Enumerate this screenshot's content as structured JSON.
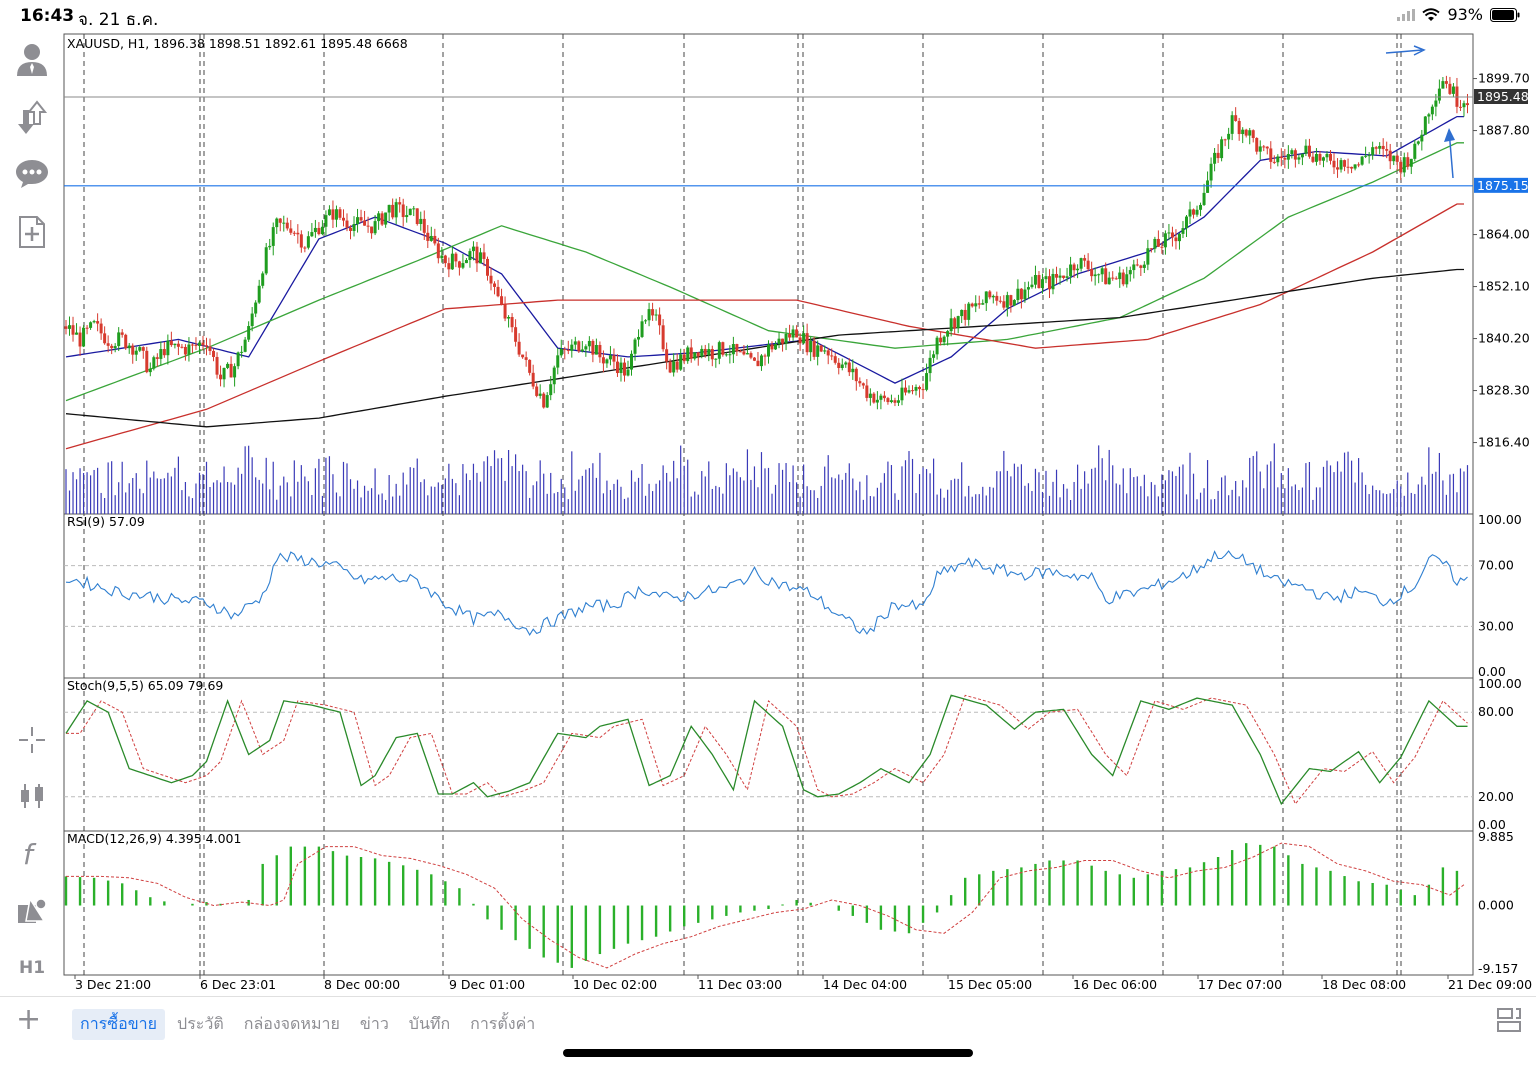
{
  "status": {
    "time": "16:43",
    "date": "จ. 21 ธ.ค.",
    "battery": "93%"
  },
  "sidebar": {
    "icons": [
      "account-icon",
      "deposit-withdraw-icon",
      "chat-icon",
      "new-order-icon",
      "crosshair-icon",
      "chart-type-icon",
      "indicators-icon",
      "objects-icon"
    ],
    "timeframe": "H1"
  },
  "chart": {
    "header": "XAUUSD, H1, 1896.38 1898.51 1892.61 1895.48 6668",
    "current_price": "1895.48",
    "line_price": "1875.15",
    "price_ticks": [
      "1899.70",
      "1887.80",
      "1864.00",
      "1852.10",
      "1840.20",
      "1828.30",
      "1816.40"
    ],
    "time_labels": [
      "3 Dec 21:00",
      "6 Dec 23:01",
      "8 Dec 00:00",
      "9 Dec 01:00",
      "10 Dec 02:00",
      "11 Dec 03:00",
      "14 Dec 04:00",
      "15 Dec 05:00",
      "16 Dec 06:00",
      "17 Dec 07:00",
      "18 Dec 08:00",
      "21 Dec 09:00"
    ],
    "colors": {
      "bull": "#1f9d1f",
      "bear": "#d73a2e",
      "ma_fast": "#1a1aa0",
      "ma_mid": "#3aa53a",
      "ma_slow": "#c8302c",
      "ma_long": "#111111",
      "volume": "#3a3ab8",
      "hline": "#1a73e8",
      "rsi": "#2f7fd0",
      "stoch": "#2a8a2a",
      "macd": "#2ab02a"
    }
  },
  "rsi": {
    "label": "RSI(9) 57.09",
    "ticks": [
      "100.00",
      "70.00",
      "30.00",
      "0.00"
    ]
  },
  "stoch": {
    "label": "Stoch(9,5,5) 65.09 79.69",
    "ticks": [
      "100.00",
      "80.00",
      "20.00",
      "0.00"
    ]
  },
  "macd": {
    "label": "MACD(12,26,9) 4.395 4.001",
    "ticks": [
      "9.885",
      "0.000",
      "-9.157"
    ]
  },
  "bottombar": {
    "tabs": [
      "การซื้อขาย",
      "ประวัติ",
      "กล่องจดหมาย",
      "ข่าว",
      "บันทึก",
      "การตั้งค่า"
    ]
  },
  "chart_data": {
    "type": "candlestick",
    "symbol": "XAUUSD",
    "timeframe": "H1",
    "last_bar": {
      "open": 1896.38,
      "high": 1898.51,
      "low": 1892.61,
      "close": 1895.48,
      "volume": 6668
    },
    "horizontal_line": 1875.15,
    "current_price": 1895.48,
    "ylim": [
      1804,
      1911
    ],
    "sessions": [
      "3 Dec 21:00",
      "6 Dec 23:01",
      "8 Dec 00:00",
      "9 Dec 01:00",
      "10 Dec 02:00",
      "11 Dec 03:00",
      "14 Dec 04:00",
      "15 Dec 05:00",
      "16 Dec 06:00",
      "17 Dec 07:00",
      "18 Dec 08:00",
      "21 Dec 09:00"
    ],
    "close_path": [
      [
        0,
        1843
      ],
      [
        4,
        1840
      ],
      [
        8,
        1843
      ],
      [
        12,
        1840
      ],
      [
        16,
        1840
      ],
      [
        20,
        1838
      ],
      [
        24,
        1833
      ],
      [
        28,
        1838
      ],
      [
        32,
        1838
      ],
      [
        36,
        1838
      ],
      [
        40,
        1840
      ],
      [
        44,
        1831
      ],
      [
        48,
        1834
      ],
      [
        52,
        1842
      ],
      [
        56,
        1857
      ],
      [
        60,
        1866
      ],
      [
        64,
        1866
      ],
      [
        68,
        1862
      ],
      [
        72,
        1866
      ],
      [
        76,
        1869
      ],
      [
        80,
        1867
      ],
      [
        84,
        1866
      ],
      [
        88,
        1866
      ],
      [
        92,
        1870
      ],
      [
        96,
        1869
      ],
      [
        100,
        1868
      ],
      [
        104,
        1862
      ],
      [
        108,
        1858
      ],
      [
        112,
        1858
      ],
      [
        116,
        1860
      ],
      [
        120,
        1856
      ],
      [
        124,
        1847
      ],
      [
        128,
        1840
      ],
      [
        132,
        1832
      ],
      [
        136,
        1826
      ],
      [
        140,
        1836
      ],
      [
        144,
        1838
      ],
      [
        148,
        1840
      ],
      [
        152,
        1836
      ],
      [
        156,
        1835
      ],
      [
        160,
        1832
      ],
      [
        164,
        1846
      ],
      [
        168,
        1844
      ],
      [
        172,
        1834
      ],
      [
        176,
        1836
      ],
      [
        180,
        1838
      ],
      [
        184,
        1837
      ],
      [
        188,
        1838
      ],
      [
        192,
        1836
      ],
      [
        196,
        1834
      ],
      [
        200,
        1838
      ],
      [
        204,
        1840
      ],
      [
        208,
        1842
      ],
      [
        212,
        1838
      ],
      [
        216,
        1838
      ],
      [
        220,
        1835
      ],
      [
        224,
        1832
      ],
      [
        228,
        1828
      ],
      [
        232,
        1826
      ],
      [
        236,
        1826
      ],
      [
        240,
        1828
      ],
      [
        244,
        1830
      ],
      [
        248,
        1840
      ],
      [
        252,
        1844
      ],
      [
        256,
        1846
      ],
      [
        260,
        1848
      ],
      [
        264,
        1850
      ],
      [
        268,
        1849
      ],
      [
        272,
        1851
      ],
      [
        276,
        1853
      ],
      [
        280,
        1853
      ],
      [
        284,
        1855
      ],
      [
        288,
        1858
      ],
      [
        292,
        1856
      ],
      [
        296,
        1854
      ],
      [
        300,
        1854
      ],
      [
        304,
        1856
      ],
      [
        308,
        1860
      ],
      [
        312,
        1862
      ],
      [
        316,
        1864
      ],
      [
        320,
        1868
      ],
      [
        324,
        1874
      ],
      [
        328,
        1883
      ],
      [
        332,
        1890
      ],
      [
        336,
        1888
      ],
      [
        340,
        1883
      ],
      [
        344,
        1881
      ],
      [
        348,
        1882
      ],
      [
        352,
        1884
      ],
      [
        356,
        1882
      ],
      [
        360,
        1880
      ],
      [
        364,
        1881
      ],
      [
        368,
        1880
      ],
      [
        372,
        1884
      ],
      [
        376,
        1882
      ],
      [
        380,
        1880
      ],
      [
        384,
        1883
      ],
      [
        388,
        1893
      ],
      [
        392,
        1900
      ],
      [
        396,
        1895
      ]
    ],
    "moving_averages": [
      {
        "name": "MA fast",
        "color": "#1a1aa0",
        "values": [
          [
            0,
            1836
          ],
          [
            32,
            1840
          ],
          [
            52,
            1836
          ],
          [
            72,
            1863
          ],
          [
            88,
            1868
          ],
          [
            108,
            1862
          ],
          [
            124,
            1855
          ],
          [
            140,
            1838
          ],
          [
            160,
            1836
          ],
          [
            180,
            1837
          ],
          [
            212,
            1840
          ],
          [
            236,
            1830
          ],
          [
            252,
            1836
          ],
          [
            268,
            1847
          ],
          [
            288,
            1855
          ],
          [
            308,
            1860
          ],
          [
            324,
            1868
          ],
          [
            340,
            1881
          ],
          [
            356,
            1883
          ],
          [
            376,
            1882
          ],
          [
            396,
            1891
          ]
        ]
      },
      {
        "name": "MA mid",
        "color": "#3aa53a",
        "values": [
          [
            0,
            1826
          ],
          [
            40,
            1838
          ],
          [
            72,
            1849
          ],
          [
            100,
            1858
          ],
          [
            124,
            1866
          ],
          [
            148,
            1860
          ],
          [
            172,
            1852
          ],
          [
            200,
            1842
          ],
          [
            236,
            1838
          ],
          [
            268,
            1840
          ],
          [
            300,
            1845
          ],
          [
            324,
            1854
          ],
          [
            348,
            1868
          ],
          [
            372,
            1876
          ],
          [
            396,
            1885
          ]
        ]
      },
      {
        "name": "MA slow",
        "color": "#c8302c",
        "values": [
          [
            0,
            1815
          ],
          [
            40,
            1824
          ],
          [
            72,
            1835
          ],
          [
            108,
            1847
          ],
          [
            140,
            1849
          ],
          [
            180,
            1849
          ],
          [
            208,
            1849
          ],
          [
            240,
            1843
          ],
          [
            276,
            1838
          ],
          [
            308,
            1840
          ],
          [
            340,
            1848
          ],
          [
            372,
            1860
          ],
          [
            396,
            1871
          ]
        ]
      },
      {
        "name": "MA long",
        "color": "#111111",
        "values": [
          [
            0,
            1823
          ],
          [
            40,
            1820
          ],
          [
            72,
            1822
          ],
          [
            108,
            1827
          ],
          [
            148,
            1832
          ],
          [
            188,
            1837
          ],
          [
            220,
            1841
          ],
          [
            260,
            1843
          ],
          [
            300,
            1845
          ],
          [
            340,
            1850
          ],
          [
            372,
            1854
          ],
          [
            396,
            1856
          ]
        ]
      }
    ],
    "rsi_path": [
      [
        0,
        62
      ],
      [
        8,
        57
      ],
      [
        16,
        52
      ],
      [
        24,
        50
      ],
      [
        32,
        47
      ],
      [
        40,
        46
      ],
      [
        48,
        37
      ],
      [
        56,
        50
      ],
      [
        60,
        75
      ],
      [
        64,
        75
      ],
      [
        72,
        72
      ],
      [
        76,
        70
      ],
      [
        84,
        60
      ],
      [
        92,
        62
      ],
      [
        100,
        60
      ],
      [
        108,
        45
      ],
      [
        116,
        35
      ],
      [
        124,
        38
      ],
      [
        132,
        27
      ],
      [
        140,
        35
      ],
      [
        148,
        43
      ],
      [
        156,
        44
      ],
      [
        164,
        55
      ],
      [
        172,
        48
      ],
      [
        180,
        52
      ],
      [
        188,
        55
      ],
      [
        196,
        65
      ],
      [
        204,
        57
      ],
      [
        212,
        52
      ],
      [
        220,
        37
      ],
      [
        228,
        25
      ],
      [
        236,
        45
      ],
      [
        244,
        42
      ],
      [
        248,
        63
      ],
      [
        256,
        72
      ],
      [
        264,
        68
      ],
      [
        272,
        64
      ],
      [
        280,
        66
      ],
      [
        292,
        62
      ],
      [
        296,
        48
      ],
      [
        304,
        52
      ],
      [
        312,
        58
      ],
      [
        320,
        65
      ],
      [
        328,
        78
      ],
      [
        336,
        73
      ],
      [
        344,
        60
      ],
      [
        352,
        56
      ],
      [
        360,
        48
      ],
      [
        368,
        53
      ],
      [
        376,
        46
      ],
      [
        384,
        57
      ],
      [
        388,
        74
      ],
      [
        392,
        72
      ],
      [
        396,
        60
      ]
    ],
    "stoch_path": [
      [
        0,
        65
      ],
      [
        6,
        88
      ],
      [
        12,
        80
      ],
      [
        18,
        40
      ],
      [
        24,
        35
      ],
      [
        30,
        30
      ],
      [
        36,
        35
      ],
      [
        40,
        45
      ],
      [
        46,
        88
      ],
      [
        52,
        50
      ],
      [
        58,
        60
      ],
      [
        62,
        88
      ],
      [
        70,
        85
      ],
      [
        78,
        80
      ],
      [
        84,
        28
      ],
      [
        88,
        35
      ],
      [
        94,
        62
      ],
      [
        100,
        65
      ],
      [
        106,
        22
      ],
      [
        110,
        22
      ],
      [
        116,
        30
      ],
      [
        120,
        20
      ],
      [
        126,
        24
      ],
      [
        132,
        30
      ],
      [
        140,
        65
      ],
      [
        148,
        62
      ],
      [
        152,
        70
      ],
      [
        160,
        75
      ],
      [
        166,
        28
      ],
      [
        172,
        35
      ],
      [
        178,
        70
      ],
      [
        184,
        50
      ],
      [
        190,
        25
      ],
      [
        196,
        88
      ],
      [
        204,
        70
      ],
      [
        210,
        25
      ],
      [
        214,
        20
      ],
      [
        220,
        22
      ],
      [
        226,
        30
      ],
      [
        232,
        40
      ],
      [
        240,
        30
      ],
      [
        246,
        50
      ],
      [
        252,
        92
      ],
      [
        262,
        85
      ],
      [
        270,
        68
      ],
      [
        276,
        80
      ],
      [
        284,
        82
      ],
      [
        292,
        50
      ],
      [
        298,
        35
      ],
      [
        306,
        88
      ],
      [
        314,
        82
      ],
      [
        322,
        90
      ],
      [
        332,
        85
      ],
      [
        340,
        50
      ],
      [
        346,
        15
      ],
      [
        354,
        40
      ],
      [
        360,
        38
      ],
      [
        368,
        52
      ],
      [
        374,
        30
      ],
      [
        380,
        48
      ],
      [
        388,
        88
      ],
      [
        396,
        70
      ]
    ],
    "macd_path": [
      [
        0,
        4.2
      ],
      [
        8,
        4.0
      ],
      [
        16,
        3.2
      ],
      [
        24,
        1.2
      ],
      [
        32,
        0.0
      ],
      [
        40,
        0.5
      ],
      [
        48,
        0.0
      ],
      [
        52,
        0.8
      ],
      [
        56,
        6.0
      ],
      [
        64,
        8.5
      ],
      [
        72,
        8.5
      ],
      [
        80,
        7.2
      ],
      [
        88,
        6.8
      ],
      [
        96,
        5.8
      ],
      [
        104,
        4.5
      ],
      [
        112,
        2.5
      ],
      [
        120,
        -2.0
      ],
      [
        128,
        -5.0
      ],
      [
        136,
        -7.5
      ],
      [
        144,
        -9.0
      ],
      [
        152,
        -7.0
      ],
      [
        160,
        -5.5
      ],
      [
        168,
        -4.5
      ],
      [
        176,
        -3.0
      ],
      [
        184,
        -2.0
      ],
      [
        192,
        -1.0
      ],
      [
        200,
        -0.5
      ],
      [
        208,
        0.8
      ],
      [
        216,
        0.0
      ],
      [
        224,
        -1.5
      ],
      [
        232,
        -3.5
      ],
      [
        240,
        -4.0
      ],
      [
        248,
        -1.0
      ],
      [
        256,
        4.0
      ],
      [
        264,
        5.0
      ],
      [
        272,
        5.5
      ],
      [
        280,
        6.5
      ],
      [
        288,
        6.5
      ],
      [
        296,
        5.0
      ],
      [
        304,
        4.0
      ],
      [
        312,
        5.0
      ],
      [
        320,
        5.5
      ],
      [
        328,
        7.0
      ],
      [
        336,
        9.0
      ],
      [
        344,
        8.5
      ],
      [
        352,
        6.0
      ],
      [
        360,
        5.0
      ],
      [
        368,
        3.5
      ],
      [
        376,
        3.0
      ],
      [
        384,
        1.5
      ],
      [
        388,
        3.0
      ],
      [
        392,
        5.5
      ],
      [
        396,
        5.0
      ]
    ]
  }
}
